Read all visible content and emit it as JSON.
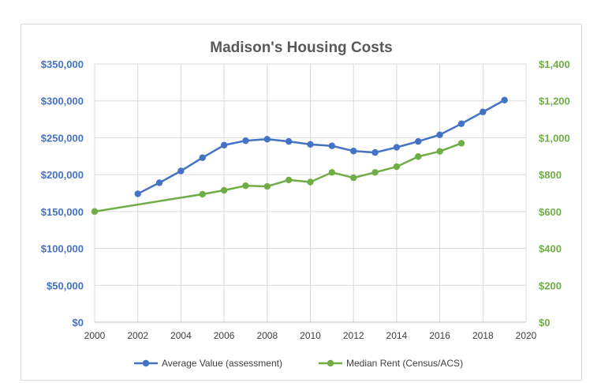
{
  "chart_data": {
    "type": "line",
    "title": "Madison's Housing Costs",
    "x": [
      2000,
      2002,
      2003,
      2004,
      2005,
      2006,
      2007,
      2008,
      2009,
      2010,
      2011,
      2012,
      2013,
      2014,
      2015,
      2016,
      2017,
      2018,
      2019
    ],
    "xlim": [
      2000,
      2020
    ],
    "x_ticks": [
      "2000",
      "2002",
      "2004",
      "2006",
      "2008",
      "2010",
      "2012",
      "2014",
      "2016",
      "2018",
      "2020"
    ],
    "x_tick_values": [
      2000,
      2002,
      2004,
      2006,
      2008,
      2010,
      2012,
      2014,
      2016,
      2018,
      2020
    ],
    "y_left": {
      "lim": [
        0,
        350000
      ],
      "ticks": [
        "$0",
        "$50,000",
        "$100,000",
        "$150,000",
        "$200,000",
        "$250,000",
        "$300,000",
        "$350,000"
      ],
      "tick_values": [
        0,
        50000,
        100000,
        150000,
        200000,
        250000,
        300000,
        350000
      ],
      "color": "#4472c4"
    },
    "y_right": {
      "lim": [
        0,
        1400
      ],
      "ticks": [
        "$0",
        "$200",
        "$400",
        "$600",
        "$800",
        "$1,000",
        "$1,200",
        "$1,400"
      ],
      "tick_values": [
        0,
        200,
        400,
        600,
        800,
        1000,
        1200,
        1400
      ],
      "color": "#70ad47"
    },
    "grid": true,
    "legend_position": "bottom",
    "series": [
      {
        "name": "Average Value (assessment)",
        "axis": "left",
        "color": "#4472c4",
        "points": [
          [
            2002,
            174000
          ],
          [
            2003,
            189000
          ],
          [
            2004,
            205000
          ],
          [
            2005,
            223000
          ],
          [
            2006,
            240000
          ],
          [
            2007,
            246000
          ],
          [
            2008,
            248000
          ],
          [
            2009,
            245000
          ],
          [
            2010,
            241000
          ],
          [
            2011,
            239000
          ],
          [
            2012,
            232000
          ],
          [
            2013,
            230000
          ],
          [
            2014,
            237000
          ],
          [
            2015,
            245000
          ],
          [
            2016,
            254000
          ],
          [
            2017,
            269000
          ],
          [
            2018,
            285000
          ],
          [
            2019,
            301000
          ]
        ]
      },
      {
        "name": "Median Rent (Census/ACS)",
        "axis": "right",
        "color": "#70ad47",
        "points": [
          [
            2000,
            600
          ],
          [
            2005,
            694
          ],
          [
            2006,
            715
          ],
          [
            2007,
            740
          ],
          [
            2008,
            736
          ],
          [
            2009,
            771
          ],
          [
            2010,
            760
          ],
          [
            2011,
            812
          ],
          [
            2012,
            783
          ],
          [
            2013,
            812
          ],
          [
            2014,
            843
          ],
          [
            2015,
            898
          ],
          [
            2016,
            926
          ],
          [
            2017,
            970
          ]
        ]
      }
    ]
  }
}
